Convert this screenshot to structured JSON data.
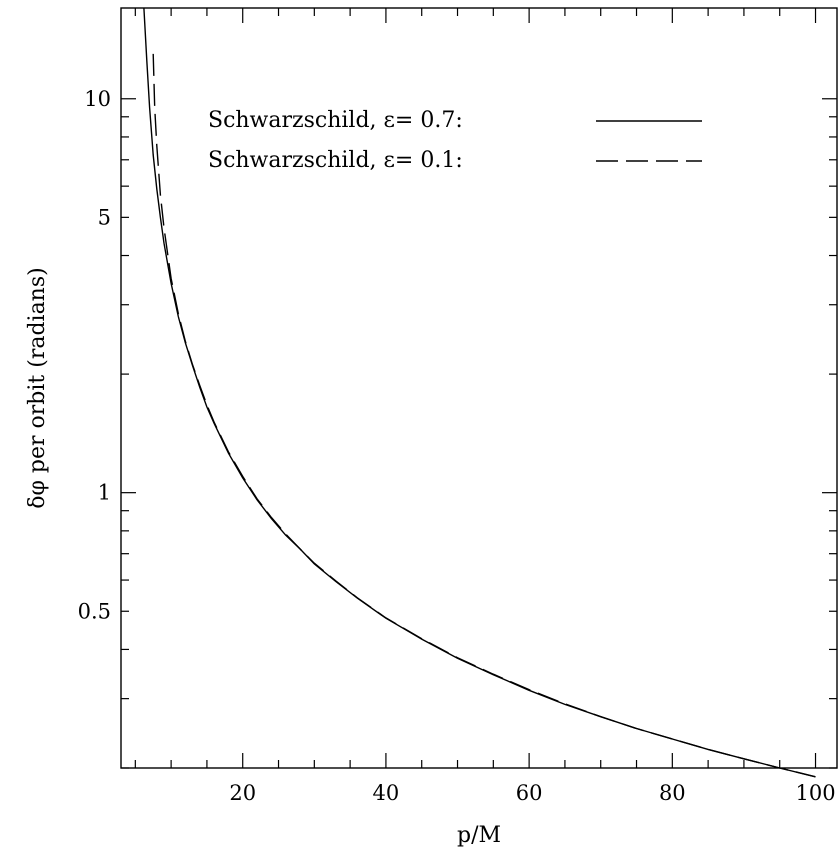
{
  "chart_data": {
    "type": "line",
    "xlabel": "p/M",
    "ylabel": "δφ per orbit (radians)",
    "xscale": "linear",
    "yscale": "log",
    "xlim": [
      3,
      103
    ],
    "ylim": [
      0.2,
      17
    ],
    "x_major_ticks": [
      20,
      40,
      60,
      80,
      100
    ],
    "x_tick_labels": [
      "20",
      "40",
      "60",
      "80",
      "100"
    ],
    "y_labeled_ticks": [
      0.5,
      1,
      5,
      10
    ],
    "y_tick_labels": [
      "0.5",
      "1",
      "5",
      "10"
    ],
    "grid": false,
    "legend_position": "top-right",
    "series": [
      {
        "name": "Schwarzschild, ε= 0.7:",
        "style": "solid",
        "x": [
          6.2,
          6.6,
          7,
          7.5,
          8,
          8.5,
          9,
          10,
          11,
          12,
          13,
          14,
          15,
          16,
          18,
          20,
          22,
          24,
          26,
          28,
          30,
          33,
          36,
          40,
          45,
          50,
          55,
          60,
          65,
          70,
          75,
          80,
          85,
          90,
          95,
          100
        ],
        "y": [
          17,
          12.5,
          9.5,
          7.2,
          5.9,
          5.0,
          4.3,
          3.4,
          2.8,
          2.4,
          2.1,
          1.85,
          1.65,
          1.5,
          1.26,
          1.09,
          0.96,
          0.86,
          0.78,
          0.72,
          0.66,
          0.595,
          0.54,
          0.48,
          0.425,
          0.38,
          0.345,
          0.315,
          0.29,
          0.27,
          0.252,
          0.237,
          0.223,
          0.211,
          0.2,
          0.19
        ]
      },
      {
        "name": "Schwarzschild, ε= 0.1:",
        "style": "dashed",
        "x": [
          7.5,
          7.7,
          8,
          8.5,
          9,
          10,
          11,
          12,
          13,
          14,
          15,
          16,
          18,
          20,
          22,
          24,
          26,
          28,
          30,
          33,
          36,
          40,
          45,
          50,
          55,
          60,
          65,
          70,
          75,
          80,
          85,
          90,
          95,
          100
        ],
        "y": [
          13,
          9.5,
          7.6,
          5.7,
          4.7,
          3.5,
          2.85,
          2.42,
          2.11,
          1.87,
          1.67,
          1.51,
          1.27,
          1.1,
          0.965,
          0.865,
          0.785,
          0.72,
          0.662,
          0.597,
          0.541,
          0.481,
          0.426,
          0.381,
          0.346,
          0.316,
          0.291,
          0.27,
          0.252,
          0.237,
          0.223,
          0.211,
          0.2,
          0.19
        ]
      }
    ]
  }
}
